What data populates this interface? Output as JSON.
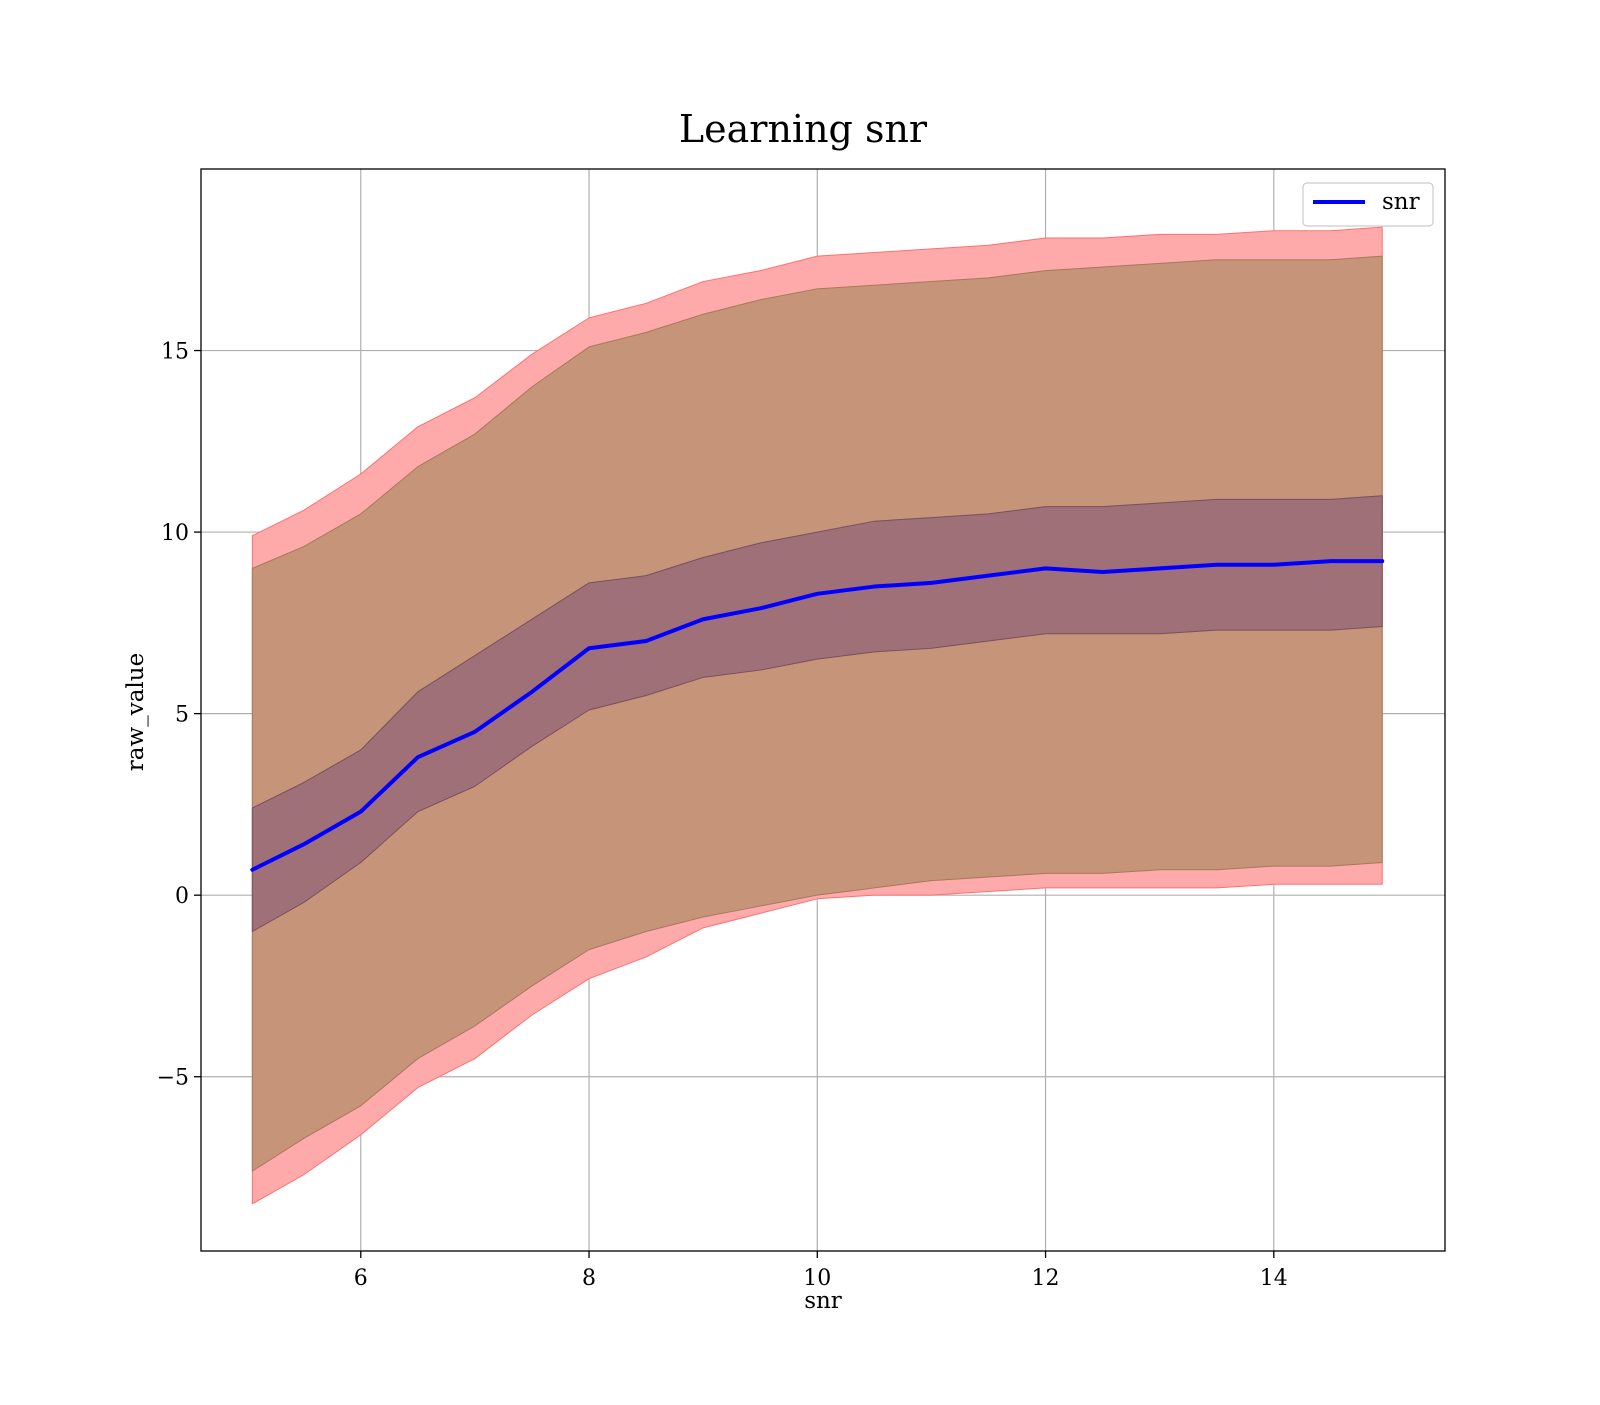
{
  "chart_data": {
    "type": "line",
    "title": "Learning snr",
    "xlabel": "snr",
    "ylabel": "raw_value",
    "xlim": [
      4.6,
      15.5
    ],
    "ylim": [
      -9.8,
      20.0
    ],
    "xticks": [
      6,
      8,
      10,
      12,
      14
    ],
    "yticks": [
      -5,
      0,
      5,
      10,
      15
    ],
    "xtick_labels": [
      "6",
      "8",
      "10",
      "12",
      "14"
    ],
    "ytick_labels": [
      "−5",
      "0",
      "5",
      "10",
      "15"
    ],
    "grid": true,
    "legend": {
      "position": "top-right",
      "entries": [
        "snr"
      ]
    },
    "colors": {
      "line": "#0000ff",
      "outer_band": "#ffaaaa",
      "outer_band_edge": "#ff7070",
      "middle_band": "#c69478",
      "middle_band_edge": "#a7785c",
      "inner_band": "#a07078",
      "inner_band_edge": "#7a4e5e"
    },
    "x": [
      5.05,
      5.5,
      6.0,
      6.5,
      7.0,
      7.5,
      8.0,
      8.5,
      9.0,
      9.5,
      10.0,
      10.5,
      11.0,
      11.5,
      12.0,
      12.5,
      13.0,
      13.5,
      14.0,
      14.5,
      14.95
    ],
    "series": [
      {
        "name": "snr",
        "values": [
          0.7,
          1.4,
          2.3,
          3.8,
          4.5,
          5.6,
          6.8,
          7.0,
          7.6,
          7.9,
          8.3,
          8.5,
          8.6,
          8.8,
          9.0,
          8.9,
          9.0,
          9.1,
          9.1,
          9.2,
          9.2
        ]
      }
    ],
    "bands": [
      {
        "lower": [
          -8.5,
          -7.7,
          -6.6,
          -5.3,
          -4.5,
          -3.3,
          -2.3,
          -1.7,
          -0.9,
          -0.5,
          -0.1,
          0.0,
          0.0,
          0.1,
          0.2,
          0.2,
          0.2,
          0.2,
          0.3,
          0.3,
          0.3
        ],
        "upper": [
          9.9,
          10.6,
          11.6,
          12.9,
          13.7,
          14.9,
          15.9,
          16.3,
          16.9,
          17.2,
          17.6,
          17.7,
          17.8,
          17.9,
          18.1,
          18.1,
          18.2,
          18.2,
          18.3,
          18.3,
          18.4
        ]
      },
      {
        "lower": [
          -7.6,
          -6.7,
          -5.8,
          -4.5,
          -3.6,
          -2.5,
          -1.5,
          -1.0,
          -0.6,
          -0.3,
          0.0,
          0.2,
          0.4,
          0.5,
          0.6,
          0.6,
          0.7,
          0.7,
          0.8,
          0.8,
          0.9
        ],
        "upper": [
          9.0,
          9.6,
          10.5,
          11.8,
          12.7,
          14.0,
          15.1,
          15.5,
          16.0,
          16.4,
          16.7,
          16.8,
          16.9,
          17.0,
          17.2,
          17.3,
          17.4,
          17.5,
          17.5,
          17.5,
          17.6
        ]
      },
      {
        "lower": [
          -1.0,
          -0.2,
          0.9,
          2.3,
          3.0,
          4.1,
          5.1,
          5.5,
          6.0,
          6.2,
          6.5,
          6.7,
          6.8,
          7.0,
          7.2,
          7.2,
          7.2,
          7.3,
          7.3,
          7.3,
          7.4
        ],
        "upper": [
          2.4,
          3.1,
          4.0,
          5.6,
          6.6,
          7.6,
          8.6,
          8.8,
          9.3,
          9.7,
          10.0,
          10.3,
          10.4,
          10.5,
          10.7,
          10.7,
          10.8,
          10.9,
          10.9,
          10.9,
          11.0
        ]
      }
    ]
  }
}
